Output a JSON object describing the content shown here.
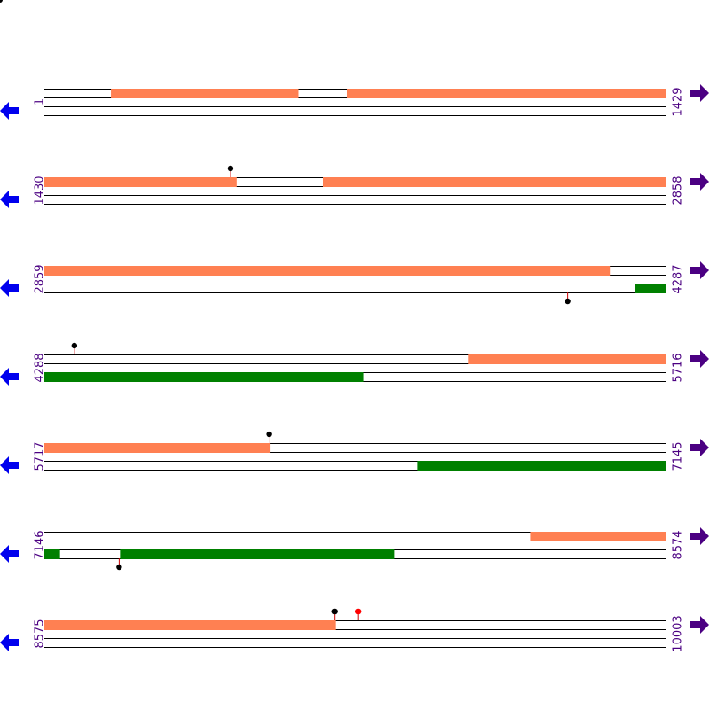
{
  "colors": {
    "forward_feature": "#ff8052",
    "reverse_feature": "#008000",
    "left_arrow": "#0000ee",
    "right_arrow": "#4b0082",
    "label": "#4b0082",
    "marker_black": "#000000",
    "marker_red": "#ff0000",
    "marker_stem": "#cc0000"
  },
  "icons": {
    "left": "arrow-left-icon",
    "right": "arrow-right-icon"
  },
  "rows": [
    {
      "start": 1,
      "end": 1429,
      "start_label": "1",
      "end_label": "1429",
      "features": [
        {
          "strand": "top",
          "from": 154,
          "to": 584
        },
        {
          "strand": "top",
          "from": 698,
          "to": 1429
        }
      ],
      "markers": []
    },
    {
      "start": 1430,
      "end": 2858,
      "start_label": "1430",
      "end_label": "2858",
      "features": [
        {
          "strand": "top",
          "from": 1430,
          "to": 1871
        },
        {
          "strand": "top",
          "from": 2072,
          "to": 2858
        }
      ],
      "markers": [
        {
          "pos": 1858,
          "side": "top",
          "color": "black"
        }
      ]
    },
    {
      "start": 2859,
      "end": 4287,
      "start_label": "2859",
      "end_label": "4287",
      "features": [
        {
          "strand": "top",
          "from": 2859,
          "to": 4159
        },
        {
          "strand": "bottom",
          "from": 4217,
          "to": 4287
        }
      ],
      "markers": [
        {
          "pos": 4063,
          "side": "bottom",
          "color": "black"
        }
      ]
    },
    {
      "start": 4288,
      "end": 5716,
      "start_label": "4288",
      "end_label": "5716",
      "features": [
        {
          "strand": "top",
          "from": 5263,
          "to": 5716
        },
        {
          "strand": "bottom",
          "from": 4288,
          "to": 5022
        }
      ],
      "markers": [
        {
          "pos": 4357,
          "side": "top",
          "color": "black"
        }
      ]
    },
    {
      "start": 5717,
      "end": 7145,
      "start_label": "5717",
      "end_label": "7145",
      "features": [
        {
          "strand": "top",
          "from": 5717,
          "to": 6236
        },
        {
          "strand": "bottom",
          "from": 6576,
          "to": 7145
        }
      ],
      "markers": [
        {
          "pos": 6234,
          "side": "top",
          "color": "black"
        }
      ]
    },
    {
      "start": 7146,
      "end": 8574,
      "start_label": "7146",
      "end_label": "8574",
      "features": [
        {
          "strand": "top",
          "from": 8264,
          "to": 8574
        },
        {
          "strand": "bottom",
          "from": 7146,
          "to": 7181
        },
        {
          "strand": "bottom",
          "from": 7320,
          "to": 7951
        }
      ],
      "markers": [
        {
          "pos": 7318,
          "side": "bottom",
          "color": "black"
        }
      ]
    },
    {
      "start": 8575,
      "end": 10003,
      "start_label": "8575",
      "end_label": "10003",
      "features": [
        {
          "strand": "top",
          "from": 8575,
          "to": 9244
        }
      ],
      "markers": [
        {
          "pos": 9243,
          "side": "top",
          "color": "black"
        },
        {
          "pos": 9297,
          "side": "top",
          "color": "red"
        }
      ]
    }
  ]
}
